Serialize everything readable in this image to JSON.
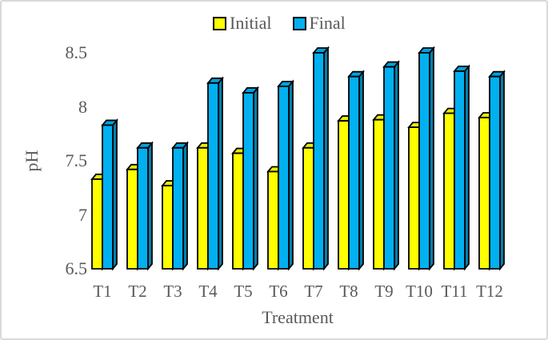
{
  "figure": {
    "background": "#ffffff",
    "border_color": "#d9d9d9",
    "text_color": "#595959",
    "outline_color": "#000000"
  },
  "legend": {
    "position": "top-center",
    "items": [
      {
        "label": "Initial",
        "color": "#ffff00"
      },
      {
        "label": "Final",
        "color": "#00b0f0"
      }
    ]
  },
  "axes": {
    "y_title": "pH",
    "x_title": "Treatment",
    "y_tick_labels": [
      "8.5",
      "8",
      "7.5",
      "7",
      "6.5"
    ]
  },
  "chart_data": {
    "type": "bar",
    "style": "3d-clustered-column",
    "title": "",
    "xlabel": "Treatment",
    "ylabel": "pH",
    "ylim": [
      6.5,
      8.5
    ],
    "y_ticks": [
      6.5,
      7,
      7.5,
      8,
      8.5
    ],
    "grid": false,
    "legend_position": "top",
    "categories": [
      "T1",
      "T2",
      "T3",
      "T4",
      "T5",
      "T6",
      "T7",
      "T8",
      "T9",
      "T10",
      "T11",
      "T12"
    ],
    "series": [
      {
        "name": "Initial",
        "color": "#ffff00",
        "values": [
          7.33,
          7.42,
          7.27,
          7.62,
          7.57,
          7.4,
          7.62,
          7.87,
          7.88,
          7.81,
          7.94,
          7.9
        ]
      },
      {
        "name": "Final",
        "color": "#00b0f0",
        "values": [
          7.83,
          7.62,
          7.62,
          8.22,
          8.13,
          8.19,
          8.5,
          8.28,
          8.37,
          8.5,
          8.33,
          8.28
        ]
      }
    ]
  }
}
